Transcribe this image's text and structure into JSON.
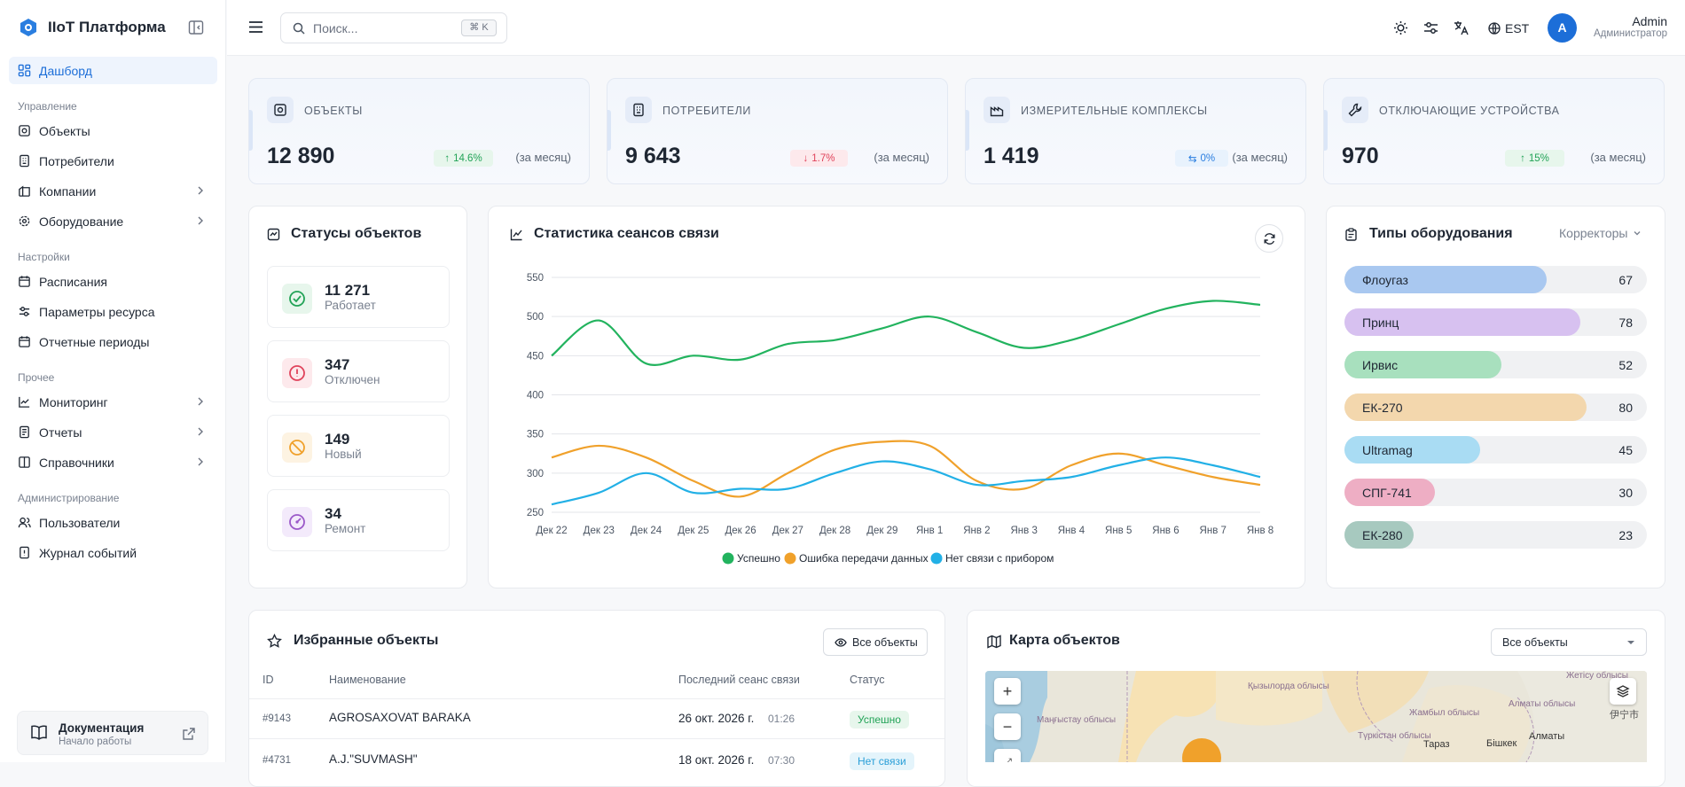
{
  "app": {
    "title": "IIoT Платформа"
  },
  "sidebar": {
    "dashboard": "Дашборд",
    "sections": {
      "management": "Управление",
      "settings": "Настройки",
      "other": "Прочее",
      "admin": "Администрирование"
    },
    "items": {
      "objects": "Объекты",
      "consumers": "Потребители",
      "companies": "Компании",
      "equipment": "Оборудование",
      "schedules": "Расписания",
      "resource_params": "Параметры ресурса",
      "report_periods": "Отчетные периоды",
      "monitoring": "Мониторинг",
      "reports": "Отчеты",
      "directories": "Справочники",
      "users": "Пользователи",
      "event_log": "Журнал событий"
    },
    "docs": {
      "title": "Документация",
      "subtitle": "Начало работы"
    }
  },
  "topbar": {
    "search_placeholder": "Поиск...",
    "shortcut": "⌘ K",
    "timezone": "EST",
    "user": {
      "initial": "A",
      "name": "Admin",
      "role": "Администратор"
    }
  },
  "kpis": [
    {
      "label": "ОБЪЕКТЫ",
      "value": "12 890",
      "change": "14.6%",
      "direction": "up",
      "period": "(за месяц)"
    },
    {
      "label": "ПОТРЕБИТЕЛИ",
      "value": "9 643",
      "change": "1.7%",
      "direction": "down",
      "period": "(за месяц)"
    },
    {
      "label": "ИЗМЕРИТЕЛЬНЫЕ КОМПЛЕКСЫ",
      "value": "1 419",
      "change": "0%",
      "direction": "flat",
      "period": "(за месяц)"
    },
    {
      "label": "ОТКЛЮЧАЮЩИЕ УСТРОЙСТВА",
      "value": "970",
      "change": "15%",
      "direction": "up",
      "period": "(за месяц)"
    }
  ],
  "statuses": {
    "title": "Статусы объектов",
    "items": [
      {
        "value": "11 271",
        "label": "Работает",
        "color": "#22a357",
        "bg": "#e7f6ec"
      },
      {
        "value": "347",
        "label": "Отключен",
        "color": "#e0435b",
        "bg": "#fde9ec"
      },
      {
        "value": "149",
        "label": "Новый",
        "color": "#f0a12b",
        "bg": "#fdf3e2"
      },
      {
        "value": "34",
        "label": "Ремонт",
        "color": "#9b59c9",
        "bg": "#f3eafb"
      }
    ]
  },
  "sessions": {
    "title": "Статистика сеансов связи",
    "chart_data": {
      "type": "line",
      "title": "Статистика сеансов связи",
      "categories": [
        "Дек 22",
        "Дек 23",
        "Дек 24",
        "Дек 25",
        "Дек 26",
        "Дек 27",
        "Дек 28",
        "Дек 29",
        "Янв 1",
        "Янв 2",
        "Янв 3",
        "Янв 4",
        "Янв 5",
        "Янв 6",
        "Янв 7",
        "Янв 8"
      ],
      "ylim": [
        250,
        550
      ],
      "yticks": [
        250,
        300,
        350,
        400,
        450,
        500,
        550
      ],
      "grid": true,
      "legend_position": "bottom",
      "series": [
        {
          "name": "Успешно",
          "color": "#22b35e",
          "values": [
            450,
            495,
            440,
            450,
            445,
            465,
            470,
            485,
            500,
            480,
            460,
            470,
            490,
            510,
            520,
            515
          ]
        },
        {
          "name": "Ошибка передачи данных",
          "color": "#f0a12b",
          "values": [
            320,
            335,
            320,
            290,
            270,
            300,
            330,
            340,
            335,
            290,
            280,
            310,
            325,
            310,
            295,
            285
          ]
        },
        {
          "name": "Нет связи с прибором",
          "color": "#22b0e6",
          "values": [
            260,
            275,
            300,
            275,
            280,
            280,
            300,
            315,
            305,
            285,
            290,
            295,
            310,
            320,
            310,
            295
          ]
        }
      ]
    }
  },
  "equipment": {
    "title": "Типы оборудования",
    "filter": "Корректоры",
    "max": 100,
    "items": [
      {
        "name": "Флоугаз",
        "value": 67,
        "color": "#a9c8f0"
      },
      {
        "name": "Принц",
        "value": 78,
        "color": "#d7c1f0"
      },
      {
        "name": "Ирвис",
        "value": 52,
        "color": "#a8e0be"
      },
      {
        "name": "ЕК-270",
        "value": 80,
        "color": "#f3d7ad"
      },
      {
        "name": "Ultramag",
        "value": 45,
        "color": "#a9dcf3"
      },
      {
        "name": "СПГ-741",
        "value": 30,
        "color": "#eeaec4"
      },
      {
        "name": "ЕК-280",
        "value": 23,
        "color": "#a7c9bf"
      }
    ]
  },
  "favorites": {
    "title": "Избранные объекты",
    "button": "Все объекты",
    "columns": [
      "ID",
      "Наименование",
      "Последний сеанс связи",
      "Статус"
    ],
    "rows": [
      {
        "id": "#9143",
        "name": "AGROSAXOVAT BARAKA",
        "date": "26 окт. 2026 г.",
        "time": "01:26",
        "status": "Успешно",
        "status_color": "#22a357",
        "status_bg": "#e7f6ec"
      },
      {
        "id": "#4731",
        "name": "A.J.\"SUVMASH\"",
        "date": "18 окт. 2026 г.",
        "time": "07:30",
        "status": "Нет связи",
        "status_color": "#2a9fd8",
        "status_bg": "#e4f4fb"
      }
    ]
  },
  "map": {
    "title": "Карта объектов",
    "filter": "Все объекты",
    "zoom_in": "+",
    "zoom_out": "−",
    "labels": [
      "Қызылорда облысы",
      "Жетісу облысы",
      "Маңғыстау облысы",
      "Жамбыл облысы",
      "Алматы облысы",
      "Түркістан облысы",
      "Тараз",
      "Бішкек",
      "Алматы",
      "伊宁市"
    ]
  }
}
